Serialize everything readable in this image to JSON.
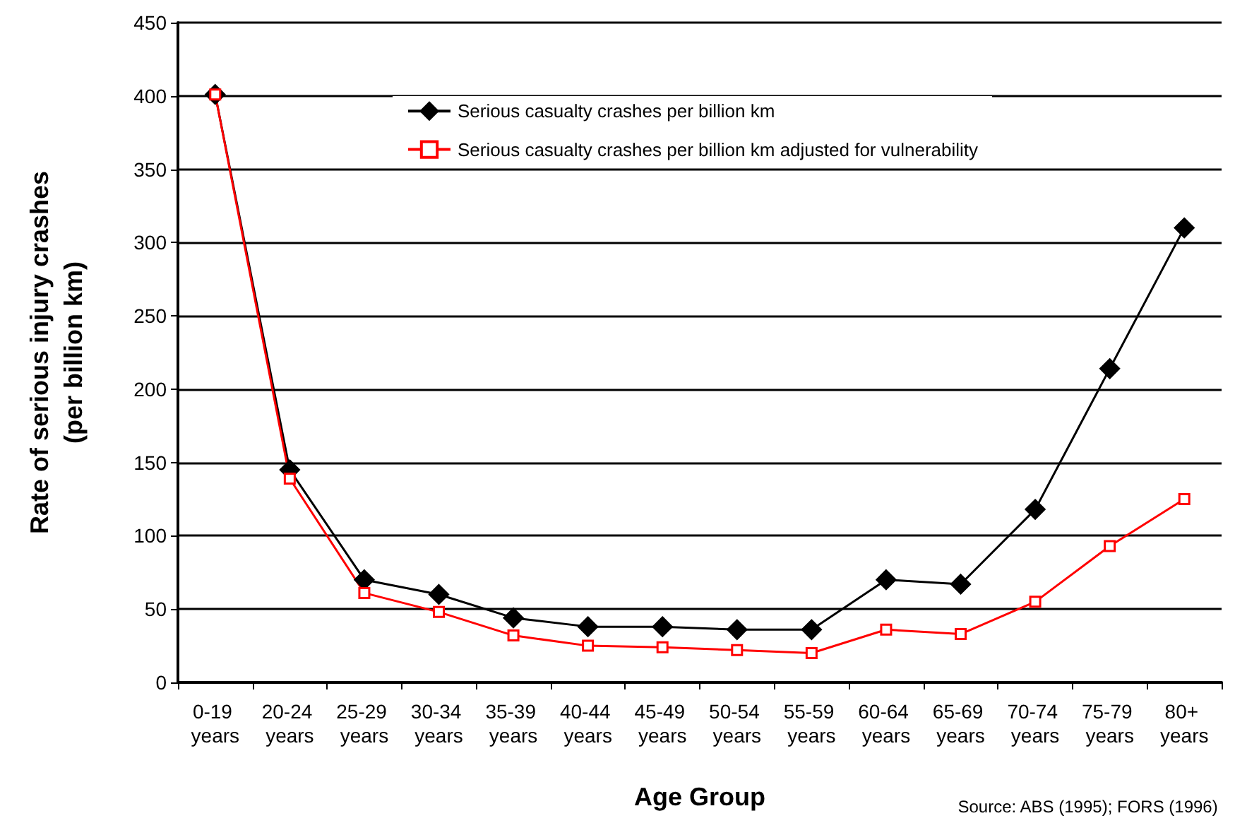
{
  "chart_data": {
    "type": "line",
    "xlabel": "Age Group",
    "ylabel": "Rate of serious injury crashes\n(per billion km)",
    "categories": [
      "0-19 years",
      "20-24 years",
      "25-29 years",
      "30-34 years",
      "35-39 years",
      "40-44 years",
      "45-49 years",
      "50-54 years",
      "55-59 years",
      "60-64 years",
      "65-69 years",
      "70-74 years",
      "75-79 years",
      "80+ years"
    ],
    "series": [
      {
        "name": "Serious casualty crashes per billion km",
        "color": "#000000",
        "marker": "diamond",
        "values": [
          401,
          145,
          70,
          60,
          44,
          38,
          38,
          36,
          36,
          70,
          67,
          118,
          214,
          310
        ]
      },
      {
        "name": "Serious casualty crashes per billion km adjusted for vulnerability",
        "color": "#ff0000",
        "marker": "square",
        "values": [
          401,
          139,
          61,
          48,
          32,
          25,
          24,
          22,
          20,
          36,
          33,
          55,
          93,
          125
        ]
      }
    ],
    "ylim": [
      0,
      450
    ],
    "yticks": [
      0,
      50,
      100,
      150,
      200,
      250,
      300,
      350,
      400,
      450
    ],
    "grid": "y",
    "legend": "top",
    "annotations": [
      "Source: ABS (1995); FORS (1996)"
    ]
  }
}
